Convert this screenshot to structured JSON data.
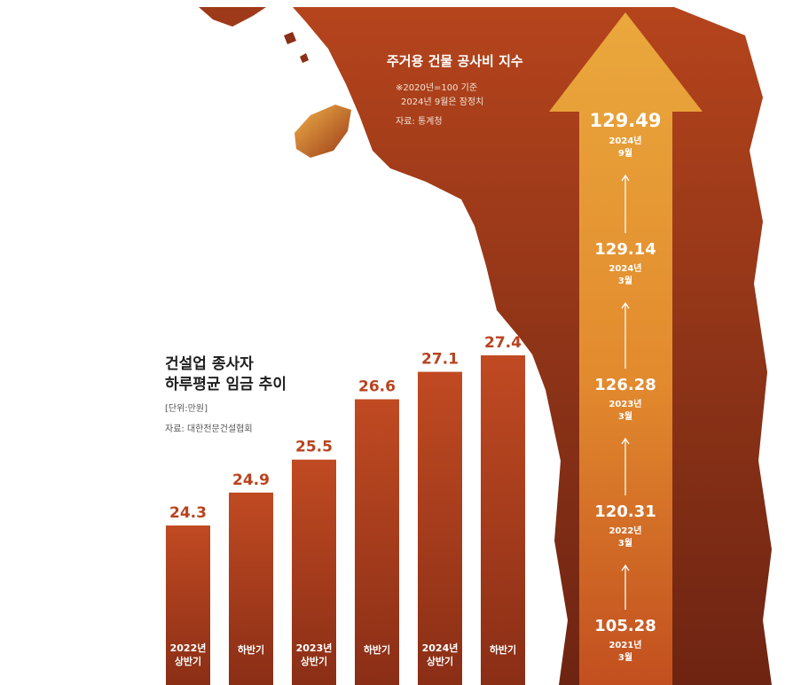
{
  "chart_data": [
    {
      "type": "bar",
      "title": "건설업 종사자 하루평균 임금 추이",
      "title_lines": [
        "건설업 종사자",
        "하루평균 임금 추이"
      ],
      "unit": "[단위:만원]",
      "source": "자료: 대한전문건설협회",
      "categories": [
        {
          "line1": "2022년",
          "line2": "상반기"
        },
        {
          "line1": "하반기",
          "line2": ""
        },
        {
          "line1": "2023년",
          "line2": "상반기"
        },
        {
          "line1": "하반기",
          "line2": ""
        },
        {
          "line1": "2024년",
          "line2": "상반기"
        },
        {
          "line1": "하반기",
          "line2": ""
        }
      ],
      "values": [
        24.3,
        24.9,
        25.5,
        26.6,
        27.1,
        27.4
      ],
      "value_labels": [
        "24.3",
        "24.9",
        "25.5",
        "26.6",
        "27.1",
        "27.4"
      ],
      "colors": {
        "bar": "#b8431f",
        "label": "#b8431f"
      }
    },
    {
      "type": "line",
      "title": "주거용 건물 공사비 지수",
      "notes": [
        "※2020년=100 기준",
        "2024년 9월은 잠정치"
      ],
      "source": "자료: 통계청",
      "points": [
        {
          "value_label": "105.28",
          "value": 105.28,
          "year": "2021년",
          "month": "3월"
        },
        {
          "value_label": "120.31",
          "value": 120.31,
          "year": "2022년",
          "month": "3월"
        },
        {
          "value_label": "126.28",
          "value": 126.28,
          "year": "2023년",
          "month": "3월"
        },
        {
          "value_label": "129.14",
          "value": 129.14,
          "year": "2024년",
          "month": "3월"
        },
        {
          "value_label": "129.49",
          "value": 129.49,
          "year": "2024년",
          "month": "9월"
        }
      ],
      "colors": {
        "arrow_top": "#e9a63a",
        "arrow_bottom": "#c2501e",
        "text": "#ffffff"
      }
    }
  ]
}
